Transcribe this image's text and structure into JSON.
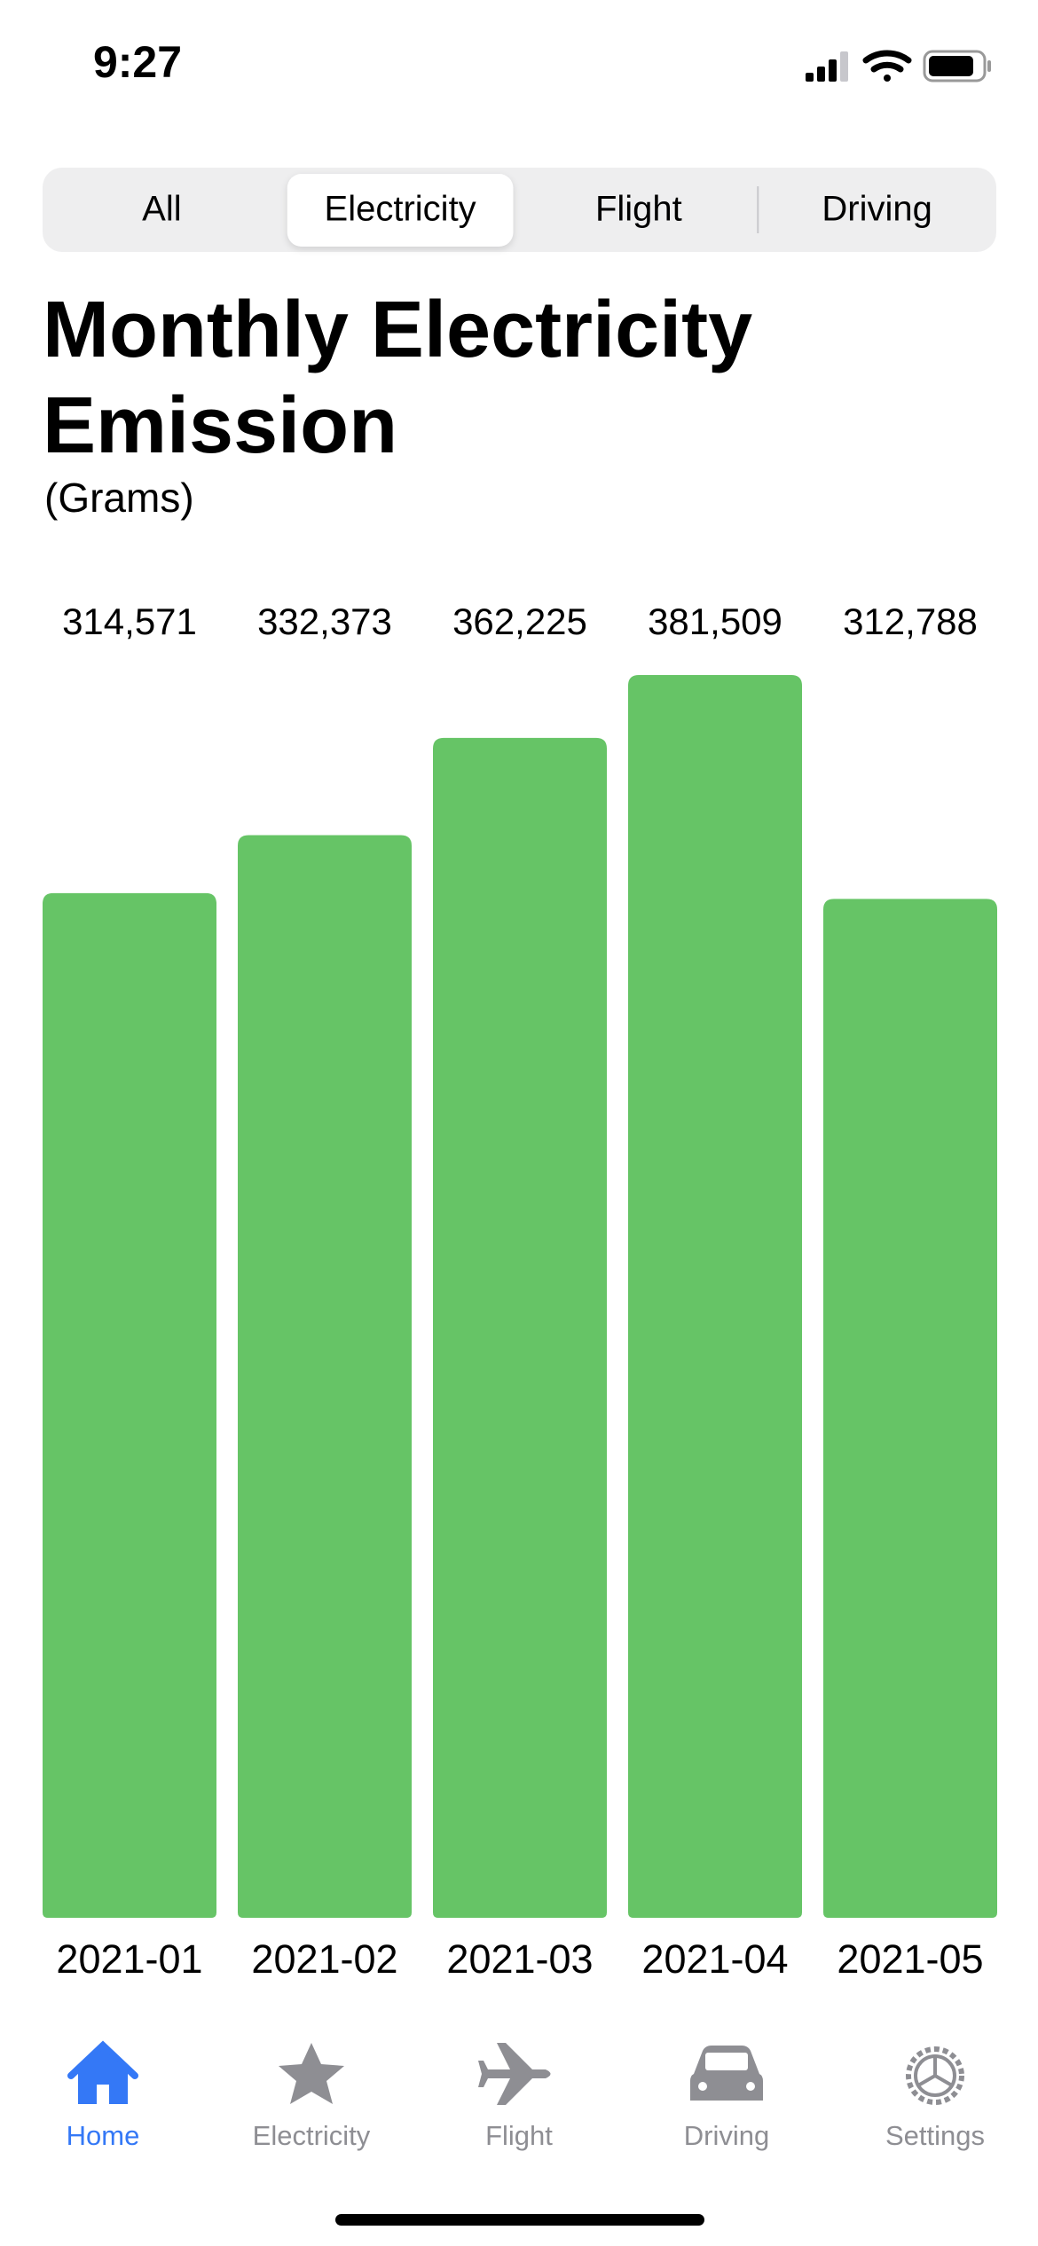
{
  "status_bar": {
    "time": "9:27"
  },
  "segments": {
    "items": [
      "All",
      "Electricity",
      "Flight",
      "Driving"
    ],
    "selected": 1
  },
  "chart_data": {
    "type": "bar",
    "title": "Monthly Electricity Emission",
    "subtitle": "(Grams)",
    "categories": [
      "2021-01",
      "2021-02",
      "2021-03",
      "2021-04",
      "2021-05"
    ],
    "values": [
      314571,
      332373,
      362225,
      381509,
      312788
    ],
    "value_labels": [
      "314,571",
      "332,373",
      "362,225",
      "381,509",
      "312,788"
    ],
    "color": "#66c466"
  },
  "tab_bar": {
    "items": [
      "Home",
      "Electricity",
      "Flight",
      "Driving",
      "Settings"
    ],
    "selected": 0
  }
}
